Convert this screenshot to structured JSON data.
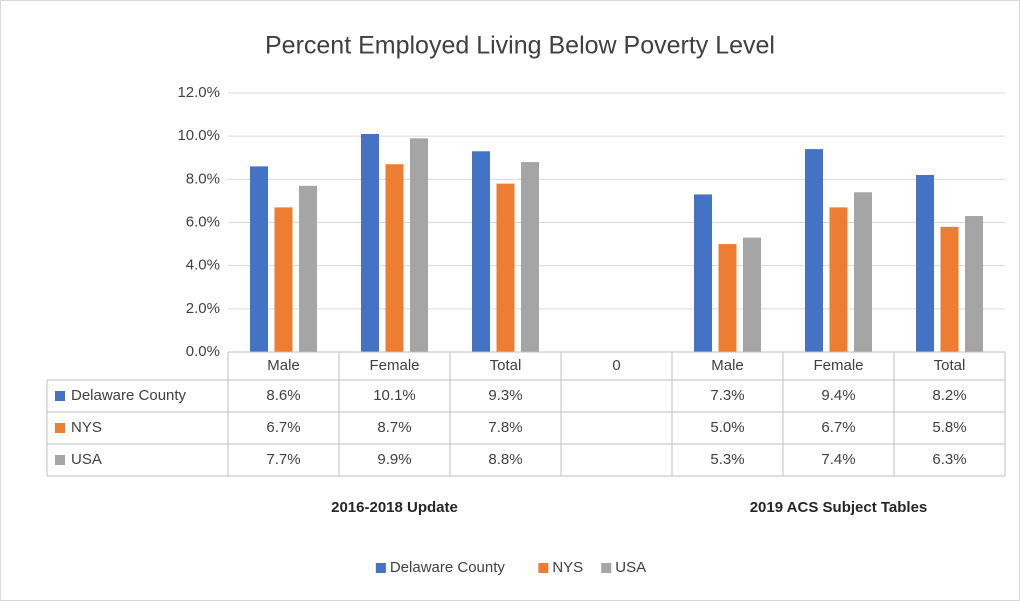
{
  "chart_data": {
    "type": "bar",
    "title": "Percent Employed Living Below Poverty Level",
    "categories": [
      "Male",
      "Female",
      "Total",
      "0",
      "Male",
      "Female",
      "Total"
    ],
    "groups": [
      "2016-2018 Update",
      "2019 ACS Subject Tables"
    ],
    "series": [
      {
        "name": "Delaware County",
        "color": "#4472c4",
        "values": [
          8.6,
          10.1,
          9.3,
          null,
          7.3,
          9.4,
          8.2
        ],
        "value_labels": [
          "8.6%",
          "10.1%",
          "9.3%",
          null,
          "7.3%",
          "9.4%",
          "8.2%"
        ]
      },
      {
        "name": "NYS",
        "color": "#ed7d31",
        "values": [
          6.7,
          8.7,
          7.8,
          null,
          5.0,
          6.7,
          5.8
        ],
        "value_labels": [
          "6.7%",
          "8.7%",
          "7.8%",
          null,
          "5.0%",
          "6.7%",
          "5.8%"
        ]
      },
      {
        "name": "USA",
        "color": "#a5a5a5",
        "values": [
          7.7,
          9.9,
          8.8,
          null,
          5.3,
          7.4,
          6.3
        ],
        "value_labels": [
          "7.7%",
          "9.9%",
          "8.8%",
          null,
          "5.3%",
          "7.4%",
          "6.3%"
        ]
      }
    ],
    "ylim": [
      0,
      12
    ],
    "yticks": [
      {
        "value": 0,
        "label": "0.0%"
      },
      {
        "value": 2,
        "label": "2.0%"
      },
      {
        "value": 4,
        "label": "4.0%"
      },
      {
        "value": 6,
        "label": "6.0%"
      },
      {
        "value": 8,
        "label": "8.0%"
      },
      {
        "value": 10,
        "label": "10.0%"
      },
      {
        "value": 12,
        "label": "12.0%"
      }
    ],
    "grid": true,
    "legend": "bottom"
  }
}
